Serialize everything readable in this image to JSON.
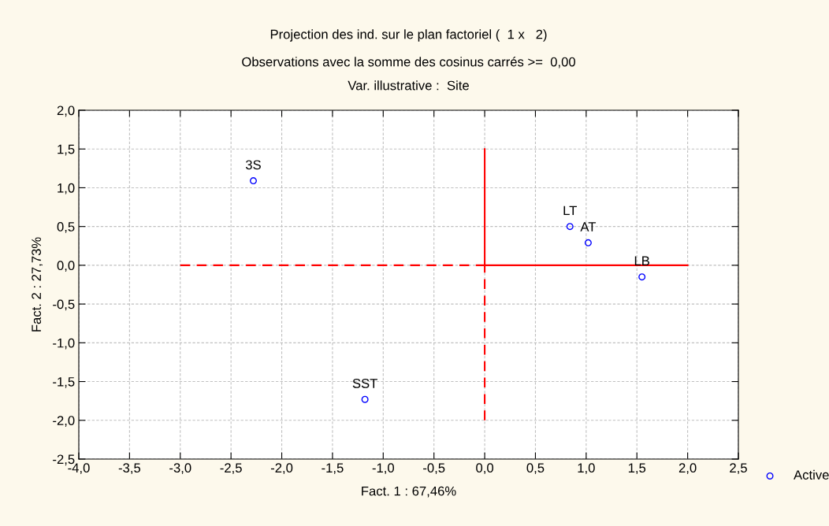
{
  "chart_data": {
    "type": "scatter",
    "title": "Projection des ind. sur le plan factoriel (  1 x   2)",
    "subtitle": "Observations avec la somme des cosinus carrés >=  0,00\nVar. illustrative :  Site",
    "xlabel": "Fact. 1 : 67,46%",
    "ylabel": "Fact. 2 : 27,73%",
    "series": [
      {
        "name": "Active",
        "color": "#0000ff",
        "x": [
          -2.28,
          -1.18,
          0.84,
          1.02,
          1.55
        ],
        "values": [
          1.09,
          -1.73,
          0.5,
          0.29,
          -0.15
        ],
        "marker": "circle"
      },
      {
        "type": "line",
        "color": "#ff0000",
        "x": [
          0,
          2
        ],
        "values": [
          0,
          0
        ],
        "line_style": "solid",
        "marker": "none"
      },
      {
        "type": "line",
        "color": "#ff0000",
        "x": [
          -3,
          0
        ],
        "values": [
          0,
          0
        ],
        "line_style": "dashed",
        "marker": "none"
      },
      {
        "type": "line",
        "color": "#ff0000",
        "x": [
          0,
          0
        ],
        "values": [
          0,
          1.5
        ],
        "line_style": "solid",
        "marker": "none"
      },
      {
        "type": "line",
        "color": "#ff0000",
        "x": [
          0,
          0
        ],
        "values": [
          -2,
          0
        ],
        "line_style": "dashed",
        "marker": "none"
      }
    ],
    "annotations": [
      {
        "text": "3S",
        "x": -2.28,
        "y": 1.09
      },
      {
        "text": "SST",
        "x": -1.18,
        "y": -1.73
      },
      {
        "text": "LT",
        "x": 0.84,
        "y": 0.5
      },
      {
        "text": "AT",
        "x": 1.02,
        "y": 0.29
      },
      {
        "text": "LB",
        "x": 1.55,
        "y": -0.15
      }
    ],
    "xlim": [
      -4,
      2.5
    ],
    "xticks": [
      {
        "value": -4,
        "label": "-4,0"
      },
      {
        "value": -3.5,
        "label": "-3,5"
      },
      {
        "value": -3,
        "label": "-3,0"
      },
      {
        "value": -2.5,
        "label": "-2,5"
      },
      {
        "value": -2,
        "label": "-2,0"
      },
      {
        "value": -1.5,
        "label": "-1,5"
      },
      {
        "value": -1,
        "label": "-1,0"
      },
      {
        "value": -0.5,
        "label": "-0,5"
      },
      {
        "value": 0,
        "label": "0,0"
      },
      {
        "value": 0.5,
        "label": "0,5"
      },
      {
        "value": 1,
        "label": "1,0"
      },
      {
        "value": 1.5,
        "label": "1,5"
      },
      {
        "value": 2,
        "label": "2,0"
      },
      {
        "value": 2.5,
        "label": "2,5"
      }
    ],
    "ylim": [
      -2.5,
      2
    ],
    "yticks": [
      {
        "value": -2.5,
        "label": "-2,5"
      },
      {
        "value": -2,
        "label": "-2,0"
      },
      {
        "value": -1.5,
        "label": "-1,5"
      },
      {
        "value": -1,
        "label": "-1,0"
      },
      {
        "value": -0.5,
        "label": "-0,5"
      },
      {
        "value": 0,
        "label": "0,0"
      },
      {
        "value": 0.5,
        "label": "0,5"
      },
      {
        "value": 1,
        "label": "1,0"
      },
      {
        "value": 1.5,
        "label": "1,5"
      },
      {
        "value": 2,
        "label": "2,0"
      }
    ],
    "grid": true,
    "legend": "bottom right"
  }
}
